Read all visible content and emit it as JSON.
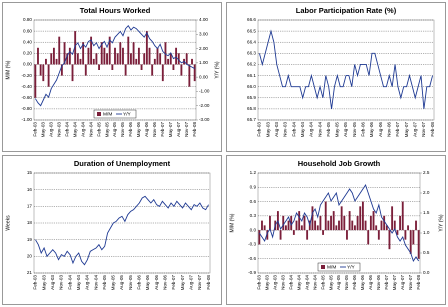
{
  "chart_data": [
    {
      "type": "combo",
      "title": "Total Hours Worked",
      "y_label": "M/M (%)",
      "y2_label": "Y/Y (%)",
      "legend": "bottom",
      "grid": true,
      "categories": [
        "Feb-03",
        null,
        null,
        "May-03",
        null,
        null,
        "Aug-03",
        null,
        null,
        "Nov-03",
        null,
        null,
        "Feb-04",
        null,
        null,
        "May-04",
        null,
        null,
        "Aug-04",
        null,
        null,
        "Nov-04",
        null,
        null,
        "Feb-05",
        null,
        null,
        "May-05",
        null,
        null,
        "Aug-05",
        null,
        null,
        "Nov-05",
        null,
        null,
        "Feb-06",
        null,
        null,
        "May-06",
        null,
        null,
        "Aug-06",
        null,
        null,
        "Nov-06",
        null,
        null,
        "Feb-07",
        null,
        null,
        "May-07",
        null,
        null,
        "Aug-07",
        null,
        null,
        "Nov-07",
        null,
        null,
        "Feb-08"
      ],
      "ylim": [
        -1,
        0.8
      ],
      "yticks": [
        {
          "value": -1,
          "label": "-1.00"
        },
        {
          "value": -0.8,
          "label": "-0.80"
        },
        {
          "value": -0.6,
          "label": "-0.60"
        },
        {
          "value": -0.4,
          "label": "-0.40"
        },
        {
          "value": -0.2,
          "label": "-0.20"
        },
        {
          "value": 0,
          "label": "0.00"
        },
        {
          "value": 0.2,
          "label": "0.20"
        },
        {
          "value": 0.4,
          "label": "0.40"
        },
        {
          "value": 0.6,
          "label": "0.60"
        },
        {
          "value": 0.8,
          "label": "0.80"
        }
      ],
      "y2lim": [
        -3,
        4
      ],
      "y2ticks": [
        {
          "value": -3,
          "label": "-3.00"
        },
        {
          "value": -2,
          "label": "-2.00"
        },
        {
          "value": -1,
          "label": "-1.00"
        },
        {
          "value": 0,
          "label": "0.00"
        },
        {
          "value": 1,
          "label": "1.00"
        },
        {
          "value": 2,
          "label": "2.00"
        },
        {
          "value": 3,
          "label": "3.00"
        },
        {
          "value": 4,
          "label": "4.00"
        }
      ],
      "series": [
        {
          "name": "M/M",
          "kind": "bar",
          "color": "#7b1f3a",
          "values": [
            -0.6,
            0.3,
            -0.2,
            -0.3,
            0.1,
            -0.4,
            0.2,
            0.3,
            0.1,
            0.5,
            -0.2,
            0.4,
            0.2,
            0.3,
            -0.3,
            0.6,
            0.2,
            0.1,
            0.4,
            -0.2,
            0.3,
            0.5,
            0.1,
            0.2,
            -0.1,
            0.4,
            0.3,
            0.2,
            0.5,
            -0.1,
            0.3,
            0.2,
            0.4,
            0.3,
            -0.2,
            0.5,
            0.2,
            0.4,
            0.1,
            0.3,
            -0.1,
            0.2,
            0.6,
            0.3,
            -0.2,
            0.1,
            0.3,
            0.2,
            -0.3,
            0.4,
            0.1,
            0.2,
            -0.1,
            0.3,
            0.2,
            -0.2,
            0.1,
            0.2,
            -0.4,
            0.1,
            -0.3
          ]
        },
        {
          "name": "Y/Y",
          "kind": "line",
          "axis": "y2",
          "color": "#1f3a93",
          "values": [
            -1.5,
            -1.8,
            -2.0,
            -1.6,
            -1.2,
            -1.4,
            -0.8,
            -0.5,
            -0.2,
            0.3,
            0.8,
            1.0,
            1.5,
            1.8,
            1.6,
            2.2,
            2.4,
            2.0,
            2.3,
            2.1,
            2.5,
            2.6,
            2.2,
            2.4,
            2.0,
            2.3,
            2.5,
            2.1,
            2.6,
            2.4,
            2.8,
            3.0,
            3.2,
            2.9,
            3.4,
            3.6,
            3.3,
            3.5,
            3.4,
            3.2,
            3.0,
            2.8,
            3.1,
            2.7,
            2.5,
            2.2,
            2.0,
            2.3,
            1.8,
            1.6,
            1.5,
            1.7,
            1.3,
            1.4,
            1.2,
            1.0,
            1.1,
            0.9,
            0.8,
            0.7,
            0.6
          ]
        }
      ]
    },
    {
      "type": "line",
      "title": "Labor Participation Rate (%)",
      "grid": true,
      "categories": [
        "Feb-03",
        null,
        null,
        "May-03",
        null,
        null,
        "Aug-03",
        null,
        null,
        "Nov-03",
        null,
        null,
        "Feb-04",
        null,
        null,
        "May-04",
        null,
        null,
        "Aug-04",
        null,
        null,
        "Nov-04",
        null,
        null,
        "Feb-05",
        null,
        null,
        "May-05",
        null,
        null,
        "Aug-05",
        null,
        null,
        "Nov-05",
        null,
        null,
        "Feb-06",
        null,
        null,
        "May-06",
        null,
        null,
        "Aug-06",
        null,
        null,
        "Nov-06",
        null,
        null,
        "Feb-07",
        null,
        null,
        "May-07",
        null,
        null,
        "Aug-07",
        null,
        null,
        "Nov-07",
        null,
        null,
        "Feb-08"
      ],
      "ylim": [
        65.7,
        66.6
      ],
      "yticks": [
        65.7,
        65.8,
        65.9,
        {
          "value": 66,
          "label": "66.0"
        },
        66.1,
        66.2,
        66.3,
        66.4,
        66.5,
        66.6
      ],
      "series": [
        {
          "name": "LFPR",
          "kind": "line",
          "color": "#1f3a93",
          "values": [
            66.3,
            66.2,
            66.3,
            66.4,
            66.5,
            66.4,
            66.2,
            66.1,
            66.0,
            66.0,
            66.1,
            66.0,
            66.0,
            66.0,
            66.0,
            65.9,
            66.0,
            66.0,
            66.1,
            66.0,
            65.9,
            66.0,
            65.9,
            66.1,
            66.0,
            65.8,
            66.0,
            66.1,
            66.0,
            66.0,
            66.1,
            66.1,
            66.0,
            66.2,
            66.1,
            66.2,
            66.2,
            66.2,
            66.1,
            66.3,
            66.3,
            66.2,
            66.1,
            66.0,
            66.0,
            66.1,
            66.0,
            66.2,
            66.0,
            65.9,
            66.0,
            66.0,
            66.1,
            66.0,
            65.9,
            66.0,
            66.1,
            65.8,
            66.0,
            66.0,
            66.1
          ]
        }
      ]
    },
    {
      "type": "line",
      "title": "Duration of Unemployment",
      "y_label": "Weeks",
      "grid": true,
      "categories": [
        "Feb-03",
        null,
        null,
        "May-03",
        null,
        null,
        "Aug-03",
        null,
        null,
        "Nov-03",
        null,
        null,
        "Feb-04",
        null,
        null,
        "May-04",
        null,
        null,
        "Aug-04",
        null,
        null,
        "Nov-04",
        null,
        null,
        "Feb-05",
        null,
        null,
        "May-05",
        null,
        null,
        "Aug-05",
        null,
        null,
        "Nov-05",
        null,
        null,
        "Feb-06",
        null,
        null,
        "May-06",
        null,
        null,
        "Aug-06",
        null,
        null,
        "Nov-06",
        null,
        null,
        "Feb-07",
        null,
        null,
        "May-07",
        null,
        null,
        "Aug-07",
        null,
        null,
        "Nov-07",
        null,
        null,
        "Feb-08"
      ],
      "ylim": [
        21,
        15
      ],
      "yticks": [
        15,
        16,
        17,
        18,
        19,
        20,
        21
      ],
      "series": [
        {
          "name": "Weeks",
          "kind": "line",
          "color": "#1f3a93",
          "values": [
            19.0,
            19.3,
            19.8,
            19.5,
            20.0,
            19.8,
            19.6,
            19.8,
            20.2,
            19.9,
            20.0,
            19.7,
            19.9,
            20.4,
            20.0,
            19.8,
            20.3,
            20.5,
            20.2,
            19.7,
            19.6,
            19.5,
            19.3,
            19.6,
            19.4,
            18.6,
            18.3,
            18.0,
            17.9,
            17.7,
            17.6,
            17.9,
            17.5,
            17.3,
            17.2,
            17.0,
            16.8,
            16.5,
            16.4,
            16.6,
            16.8,
            16.6,
            16.9,
            17.0,
            16.7,
            16.9,
            17.1,
            16.8,
            17.0,
            16.7,
            16.9,
            17.1,
            16.8,
            17.0,
            17.2,
            16.9,
            17.0,
            16.8,
            17.1,
            17.2,
            16.9
          ]
        }
      ]
    },
    {
      "type": "combo",
      "title": "Household Job Growth",
      "y_label": "M/M (%)",
      "y2_label": "Y/Y (%)",
      "legend": "bottom",
      "grid": true,
      "categories": [
        "Feb-03",
        null,
        null,
        "May-03",
        null,
        null,
        "Aug-03",
        null,
        null,
        "Nov-03",
        null,
        null,
        "Feb-04",
        null,
        null,
        "May-04",
        null,
        null,
        "Aug-04",
        null,
        null,
        "Nov-04",
        null,
        null,
        "Feb-05",
        null,
        null,
        "May-05",
        null,
        null,
        "Aug-05",
        null,
        null,
        "Nov-05",
        null,
        null,
        "Feb-06",
        null,
        null,
        "May-06",
        null,
        null,
        "Aug-06",
        null,
        null,
        "Nov-06",
        null,
        null,
        "Feb-07",
        null,
        null,
        "May-07",
        null,
        null,
        "Aug-07",
        null,
        null,
        "Nov-07",
        null,
        null,
        "Feb-08"
      ],
      "ylim": [
        -0.9,
        1.2
      ],
      "yticks": [
        -0.9,
        -0.6,
        -0.3,
        {
          "value": 0,
          "label": "0.0"
        },
        0.3,
        0.6,
        0.9,
        1.2
      ],
      "y2lim": [
        0,
        2.5
      ],
      "y2ticks": [
        {
          "value": 0,
          "label": "0.0"
        },
        0.5,
        {
          "value": 1,
          "label": "1.0"
        },
        1.5,
        {
          "value": 2,
          "label": "2.0"
        },
        2.5
      ],
      "series": [
        {
          "name": "M/M",
          "kind": "bar",
          "color": "#7b1f3a",
          "values": [
            -0.3,
            0.2,
            0.1,
            -0.2,
            0.3,
            0.0,
            0.2,
            0.4,
            -0.2,
            0.3,
            0.1,
            0.2,
            0.3,
            -0.1,
            0.2,
            0.4,
            0.1,
            0.3,
            -0.2,
            0.2,
            0.5,
            0.2,
            0.1,
            0.3,
            -0.1,
            0.6,
            0.2,
            0.3,
            0.4,
            0.1,
            0.2,
            0.5,
            0.3,
            -0.2,
            0.4,
            0.2,
            0.1,
            0.3,
            0.5,
            0.6,
            0.2,
            -0.3,
            0.3,
            0.4,
            0.1,
            -0.2,
            0.2,
            0.3,
            0.1,
            -0.4,
            0.5,
            0.2,
            -0.1,
            0.3,
            0.6,
            -0.2,
            0.1,
            -0.5,
            -0.3,
            0.2,
            -0.6
          ]
        },
        {
          "name": "Y/Y",
          "kind": "line",
          "axis": "y2",
          "color": "#1f3a93",
          "values": [
            1.0,
            0.9,
            0.8,
            1.0,
            1.1,
            0.9,
            1.2,
            1.3,
            1.1,
            1.2,
            1.3,
            1.4,
            1.2,
            1.3,
            1.5,
            1.4,
            1.3,
            1.5,
            1.4,
            1.2,
            1.5,
            1.6,
            1.4,
            1.7,
            1.8,
            1.9,
            2.0,
            1.8,
            1.9,
            2.0,
            1.7,
            1.8,
            1.9,
            2.0,
            2.1,
            2.0,
            1.8,
            1.9,
            2.0,
            2.1,
            2.2,
            2.0,
            1.8,
            1.6,
            1.5,
            1.7,
            1.4,
            1.3,
            1.2,
            1.1,
            1.0,
            1.1,
            0.9,
            0.8,
            0.9,
            0.7,
            0.6,
            0.5,
            0.3,
            0.4,
            0.3
          ]
        }
      ]
    }
  ]
}
